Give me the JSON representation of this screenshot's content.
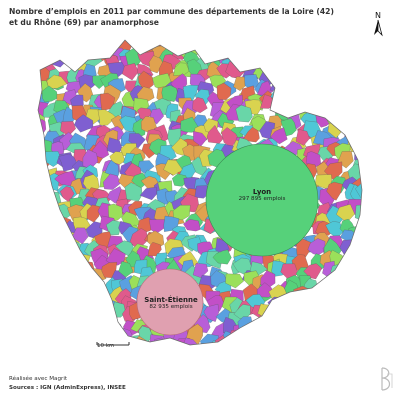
{
  "title": {
    "line1": "Nombre d’emplois en 2011 par commune des départements de la Loire (42)",
    "line2": "et du Rhône (69) par anamorphose"
  },
  "north_arrow": {
    "label": "N",
    "icon": "north-arrow-icon"
  },
  "cities": [
    {
      "name": "Lyon",
      "jobs": "297 895 emplois"
    },
    {
      "name": "Saint-Étienne",
      "jobs": "82 935 emplois"
    }
  ],
  "scale_bar": {
    "label": "10 km"
  },
  "credits": {
    "made_with": "Réalisée avec Magrit",
    "sources": "Sources : IGN (AdminExpress), INSEE"
  },
  "palette": [
    "#e05a8c",
    "#c24fc7",
    "#7f5fd1",
    "#5aa0e0",
    "#4fc7d6",
    "#56d17a",
    "#9be05a",
    "#d9d34f",
    "#e0a24f",
    "#e06a4f",
    "#b85ed8",
    "#69d6a8"
  ],
  "logo": {
    "icon": "author-logo-icon"
  }
}
